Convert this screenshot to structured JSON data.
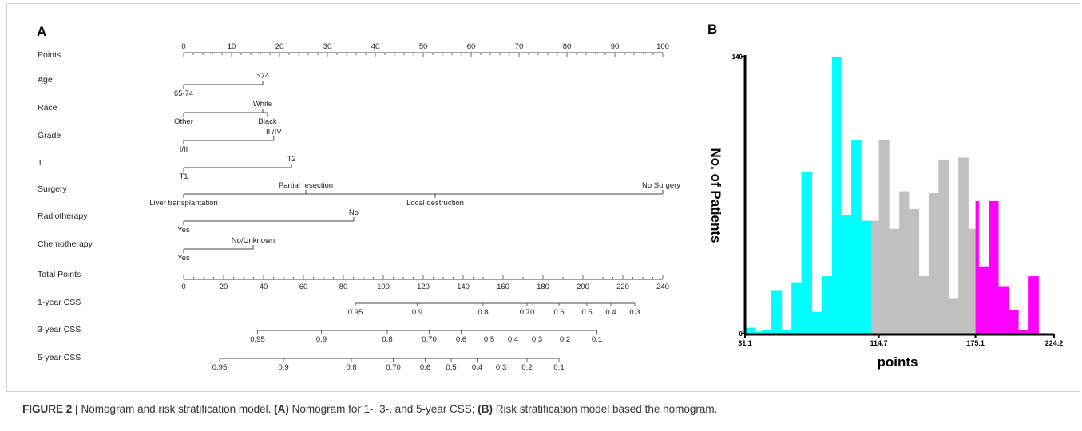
{
  "panels": {
    "a_label": "A",
    "b_label": "B"
  },
  "caption": {
    "figure_label": "FIGURE 2 |",
    "text1": " Nomogram and risk stratification model. ",
    "a_ref": "(A)",
    "text2": " Nomogram for 1-, 3-, and 5-year CSS; ",
    "b_ref": "(B)",
    "text3": " Risk stratification model based the nomogram."
  },
  "chart_data": [
    {
      "type": "nomogram",
      "points_scale": {
        "label": "Points",
        "min": 0,
        "max": 100,
        "ticks": [
          0,
          10,
          20,
          30,
          40,
          50,
          60,
          70,
          80,
          90,
          100
        ]
      },
      "variables": [
        {
          "name": "Age",
          "levels": [
            {
              "label": "65-74",
              "points": 0
            },
            {
              "label": ">74",
              "points": 16.5
            }
          ]
        },
        {
          "name": "Race",
          "levels": [
            {
              "label": "Other",
              "points": 0
            },
            {
              "label": "White",
              "points": 16.5
            },
            {
              "label": "Black",
              "points": 17.5
            }
          ]
        },
        {
          "name": "Grade",
          "levels": [
            {
              "label": "I/II",
              "points": 0
            },
            {
              "label": "III/IV",
              "points": 18.8
            }
          ]
        },
        {
          "name": "T",
          "levels": [
            {
              "label": "T1",
              "points": 0
            },
            {
              "label": "T2",
              "points": 22.5
            }
          ]
        },
        {
          "name": "Surgery",
          "levels": [
            {
              "label": "Liver transplantation",
              "points": 0
            },
            {
              "label": "Partial resection",
              "points": 25.5
            },
            {
              "label": "Local  destruction",
              "points": 52.5
            },
            {
              "label": "No Surgery",
              "points": 100
            }
          ]
        },
        {
          "name": "Radiotherapy",
          "levels": [
            {
              "label": "Yes",
              "points": 0
            },
            {
              "label": "No",
              "points": 35.5
            }
          ]
        },
        {
          "name": "Chemotherapy",
          "levels": [
            {
              "label": "Yes",
              "points": 0
            },
            {
              "label": "No/Unknown",
              "points": 14.5
            }
          ]
        }
      ],
      "total_points": {
        "label": "Total Points",
        "min": 0,
        "max": 240,
        "ticks": [
          0,
          20,
          40,
          60,
          80,
          100,
          120,
          140,
          160,
          180,
          200,
          220,
          240
        ]
      },
      "survival_axes": [
        {
          "label": "1-year  CSS",
          "ticks": [
            {
              "label": "0.95",
              "total": 86
            },
            {
              "label": "0.9",
              "total": 117
            },
            {
              "label": "0.8",
              "total": 150
            },
            {
              "label": "0.70",
              "total": 172
            },
            {
              "label": "0.6",
              "total": 188
            },
            {
              "label": "0.5",
              "total": 202
            },
            {
              "label": "0.4",
              "total": 214
            },
            {
              "label": "0.3",
              "total": 226
            }
          ]
        },
        {
          "label": "3-year  CSS",
          "ticks": [
            {
              "label": "0.95",
              "total": 37
            },
            {
              "label": "0.9",
              "total": 69
            },
            {
              "label": "0.8",
              "total": 102
            },
            {
              "label": "0.70",
              "total": 123
            },
            {
              "label": "0.6",
              "total": 139
            },
            {
              "label": "0.5",
              "total": 153
            },
            {
              "label": "0.4",
              "total": 165
            },
            {
              "label": "0.3",
              "total": 177
            },
            {
              "label": "0.2",
              "total": 191
            },
            {
              "label": "0.1",
              "total": 207
            }
          ]
        },
        {
          "label": "5-year  CSS",
          "ticks": [
            {
              "label": "0.95",
              "total": 18
            },
            {
              "label": "0.9",
              "total": 50
            },
            {
              "label": "0.8",
              "total": 84
            },
            {
              "label": "0.70",
              "total": 105
            },
            {
              "label": "0.6",
              "total": 121
            },
            {
              "label": "0.5",
              "total": 134
            },
            {
              "label": "0.4",
              "total": 147
            },
            {
              "label": "0.3",
              "total": 159
            },
            {
              "label": "0.2",
              "total": 172
            },
            {
              "label": "0.1",
              "total": 188
            }
          ]
        }
      ]
    },
    {
      "type": "bar",
      "xlabel": "points",
      "ylabel": "No. of Patients",
      "xlim": [
        31.1,
        224.2
      ],
      "ylim": [
        0,
        140
      ],
      "y_ticks": [
        0,
        140
      ],
      "x_ticks": [
        "31.1",
        "114.7",
        "175.1",
        "224.2"
      ],
      "colors": {
        "low": "#00ffff",
        "medium": "#c0c0c0",
        "high": "#ff00ff"
      },
      "bins": [
        {
          "x0": 31.1,
          "x1": 37.0,
          "value": 3,
          "group": "low"
        },
        {
          "x0": 37.0,
          "x1": 41.3,
          "value": 1,
          "group": "low"
        },
        {
          "x0": 41.3,
          "x1": 47.2,
          "value": 2,
          "group": "low"
        },
        {
          "x0": 47.2,
          "x1": 54.0,
          "value": 22,
          "group": "low"
        },
        {
          "x0": 54.0,
          "x1": 60.1,
          "value": 2,
          "group": "low"
        },
        {
          "x0": 60.1,
          "x1": 66.3,
          "value": 26,
          "group": "low"
        },
        {
          "x0": 66.3,
          "x1": 72.9,
          "value": 82,
          "group": "low"
        },
        {
          "x0": 72.9,
          "x1": 79.3,
          "value": 11,
          "group": "low"
        },
        {
          "x0": 79.3,
          "x1": 85.4,
          "value": 29,
          "group": "low"
        },
        {
          "x0": 85.4,
          "x1": 91.0,
          "value": 140,
          "group": "low"
        },
        {
          "x0": 91.0,
          "x1": 97.5,
          "value": 60,
          "group": "low"
        },
        {
          "x0": 97.5,
          "x1": 103.7,
          "value": 98,
          "group": "low"
        },
        {
          "x0": 103.7,
          "x1": 110.1,
          "value": 57,
          "group": "low"
        },
        {
          "x0": 110.1,
          "x1": 114.7,
          "value": 57,
          "group": "medium"
        },
        {
          "x0": 114.7,
          "x1": 121.1,
          "value": 98,
          "group": "medium"
        },
        {
          "x0": 121.1,
          "x1": 127.5,
          "value": 53,
          "group": "medium"
        },
        {
          "x0": 127.5,
          "x1": 133.4,
          "value": 72,
          "group": "medium"
        },
        {
          "x0": 133.4,
          "x1": 139.8,
          "value": 63,
          "group": "medium"
        },
        {
          "x0": 139.8,
          "x1": 145.8,
          "value": 29,
          "group": "medium"
        },
        {
          "x0": 145.8,
          "x1": 152.0,
          "value": 71,
          "group": "medium"
        },
        {
          "x0": 152.0,
          "x1": 158.6,
          "value": 88,
          "group": "medium"
        },
        {
          "x0": 158.6,
          "x1": 164.4,
          "value": 18,
          "group": "medium"
        },
        {
          "x0": 164.4,
          "x1": 170.6,
          "value": 89,
          "group": "medium"
        },
        {
          "x0": 170.6,
          "x1": 175.1,
          "value": 53,
          "group": "medium"
        },
        {
          "x0": 175.1,
          "x1": 177.1,
          "value": 67,
          "group": "high"
        },
        {
          "x0": 177.1,
          "x1": 183.3,
          "value": 34,
          "group": "high"
        },
        {
          "x0": 183.3,
          "x1": 189.4,
          "value": 67,
          "group": "high"
        },
        {
          "x0": 189.4,
          "x1": 195.8,
          "value": 24,
          "group": "high"
        },
        {
          "x0": 195.8,
          "x1": 201.9,
          "value": 12,
          "group": "high"
        },
        {
          "x0": 201.9,
          "x1": 208.3,
          "value": 2,
          "group": "high"
        },
        {
          "x0": 208.3,
          "x1": 214.5,
          "value": 29,
          "group": "high"
        }
      ]
    }
  ]
}
